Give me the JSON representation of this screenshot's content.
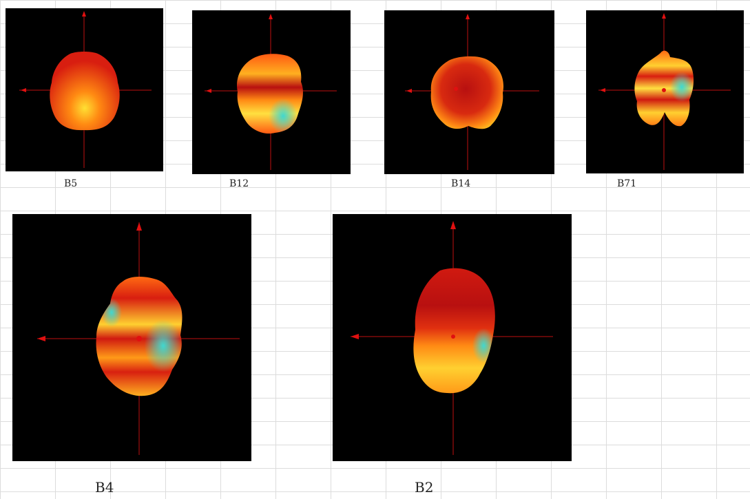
{
  "captions": {
    "b5": "B5",
    "b12": "B12",
    "b14": "B14",
    "b71": "B71",
    "b4": "B4",
    "b2": "B2"
  },
  "colors": {
    "background": "#000000",
    "axis": "#d01010",
    "shape_hot": "#cc1a10",
    "shape_mid": "#ff6a10",
    "shape_warm": "#ffcc20",
    "shape_cool": "#40d8d0",
    "grid": "#dcdcdc"
  }
}
